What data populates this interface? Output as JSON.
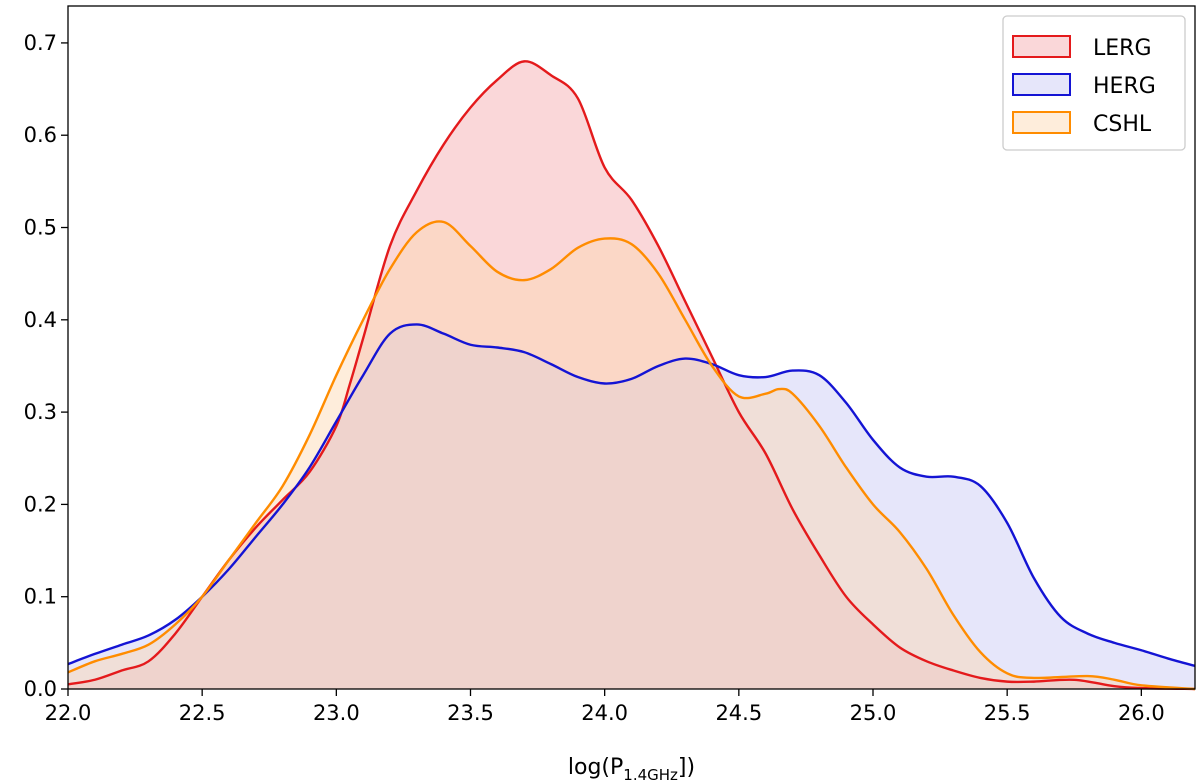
{
  "chart_data": {
    "type": "area",
    "title": "",
    "xlabel": {
      "main": "log(P",
      "subscript": "1.4GHz",
      "suffix": "])"
    },
    "ylabel": "",
    "xlim": [
      22.0,
      26.2
    ],
    "ylim": [
      0.0,
      0.74
    ],
    "xticks": [
      "22.0",
      "22.5",
      "23.0",
      "23.5",
      "24.0",
      "24.5",
      "25.0",
      "25.5",
      "26.0"
    ],
    "yticks": [
      "0.0",
      "0.1",
      "0.2",
      "0.3",
      "0.4",
      "0.5",
      "0.6",
      "0.7"
    ],
    "grid": false,
    "legend": {
      "position": "top-right"
    },
    "series": [
      {
        "name": "LERG",
        "line_color": "#e41a1c",
        "fill_color": "#f4a6ab",
        "points": [
          [
            22.0,
            0.005
          ],
          [
            22.1,
            0.01
          ],
          [
            22.2,
            0.02
          ],
          [
            22.3,
            0.03
          ],
          [
            22.4,
            0.06
          ],
          [
            22.5,
            0.1
          ],
          [
            22.6,
            0.14
          ],
          [
            22.7,
            0.175
          ],
          [
            22.8,
            0.205
          ],
          [
            22.9,
            0.235
          ],
          [
            23.0,
            0.285
          ],
          [
            23.05,
            0.33
          ],
          [
            23.1,
            0.38
          ],
          [
            23.2,
            0.48
          ],
          [
            23.3,
            0.54
          ],
          [
            23.4,
            0.59
          ],
          [
            23.5,
            0.63
          ],
          [
            23.6,
            0.66
          ],
          [
            23.7,
            0.68
          ],
          [
            23.8,
            0.665
          ],
          [
            23.9,
            0.64
          ],
          [
            24.0,
            0.565
          ],
          [
            24.1,
            0.53
          ],
          [
            24.2,
            0.48
          ],
          [
            24.3,
            0.42
          ],
          [
            24.4,
            0.36
          ],
          [
            24.5,
            0.3
          ],
          [
            24.6,
            0.255
          ],
          [
            24.7,
            0.195
          ],
          [
            24.8,
            0.145
          ],
          [
            24.9,
            0.1
          ],
          [
            25.0,
            0.07
          ],
          [
            25.1,
            0.045
          ],
          [
            25.2,
            0.03
          ],
          [
            25.3,
            0.02
          ],
          [
            25.4,
            0.012
          ],
          [
            25.5,
            0.008
          ],
          [
            25.6,
            0.008
          ],
          [
            25.75,
            0.01
          ],
          [
            25.9,
            0.003
          ],
          [
            26.0,
            0.001
          ],
          [
            26.2,
            0.0
          ]
        ]
      },
      {
        "name": "HERG",
        "line_color": "#1414d4",
        "fill_color": "#c8c8f4",
        "points": [
          [
            22.0,
            0.027
          ],
          [
            22.1,
            0.038
          ],
          [
            22.2,
            0.048
          ],
          [
            22.3,
            0.058
          ],
          [
            22.4,
            0.075
          ],
          [
            22.5,
            0.1
          ],
          [
            22.6,
            0.13
          ],
          [
            22.7,
            0.165
          ],
          [
            22.8,
            0.2
          ],
          [
            22.9,
            0.24
          ],
          [
            23.0,
            0.29
          ],
          [
            23.1,
            0.34
          ],
          [
            23.2,
            0.385
          ],
          [
            23.3,
            0.395
          ],
          [
            23.4,
            0.385
          ],
          [
            23.5,
            0.373
          ],
          [
            23.6,
            0.37
          ],
          [
            23.7,
            0.365
          ],
          [
            23.8,
            0.352
          ],
          [
            23.9,
            0.338
          ],
          [
            24.0,
            0.331
          ],
          [
            24.1,
            0.336
          ],
          [
            24.2,
            0.35
          ],
          [
            24.3,
            0.358
          ],
          [
            24.4,
            0.352
          ],
          [
            24.5,
            0.34
          ],
          [
            24.6,
            0.338
          ],
          [
            24.7,
            0.345
          ],
          [
            24.8,
            0.34
          ],
          [
            24.9,
            0.31
          ],
          [
            25.0,
            0.27
          ],
          [
            25.1,
            0.24
          ],
          [
            25.2,
            0.23
          ],
          [
            25.3,
            0.23
          ],
          [
            25.4,
            0.22
          ],
          [
            25.5,
            0.18
          ],
          [
            25.6,
            0.12
          ],
          [
            25.7,
            0.078
          ],
          [
            25.8,
            0.06
          ],
          [
            25.9,
            0.05
          ],
          [
            26.0,
            0.042
          ],
          [
            26.1,
            0.033
          ],
          [
            26.2,
            0.025
          ]
        ]
      },
      {
        "name": "CSHL",
        "line_color": "#ff8c00",
        "fill_color": "#fcd8b0",
        "points": [
          [
            22.0,
            0.018
          ],
          [
            22.1,
            0.03
          ],
          [
            22.2,
            0.038
          ],
          [
            22.3,
            0.048
          ],
          [
            22.4,
            0.07
          ],
          [
            22.5,
            0.1
          ],
          [
            22.6,
            0.14
          ],
          [
            22.7,
            0.18
          ],
          [
            22.8,
            0.22
          ],
          [
            22.9,
            0.275
          ],
          [
            23.0,
            0.34
          ],
          [
            23.1,
            0.4
          ],
          [
            23.2,
            0.455
          ],
          [
            23.3,
            0.495
          ],
          [
            23.4,
            0.506
          ],
          [
            23.5,
            0.48
          ],
          [
            23.6,
            0.452
          ],
          [
            23.7,
            0.443
          ],
          [
            23.8,
            0.455
          ],
          [
            23.9,
            0.478
          ],
          [
            24.0,
            0.488
          ],
          [
            24.1,
            0.482
          ],
          [
            24.2,
            0.45
          ],
          [
            24.3,
            0.4
          ],
          [
            24.4,
            0.35
          ],
          [
            24.5,
            0.317
          ],
          [
            24.6,
            0.32
          ],
          [
            24.65,
            0.325
          ],
          [
            24.7,
            0.32
          ],
          [
            24.8,
            0.285
          ],
          [
            24.9,
            0.24
          ],
          [
            25.0,
            0.2
          ],
          [
            25.1,
            0.17
          ],
          [
            25.2,
            0.13
          ],
          [
            25.3,
            0.08
          ],
          [
            25.4,
            0.04
          ],
          [
            25.5,
            0.017
          ],
          [
            25.6,
            0.012
          ],
          [
            25.8,
            0.014
          ],
          [
            25.9,
            0.01
          ],
          [
            26.0,
            0.004
          ],
          [
            26.2,
            0.0
          ]
        ]
      }
    ]
  }
}
